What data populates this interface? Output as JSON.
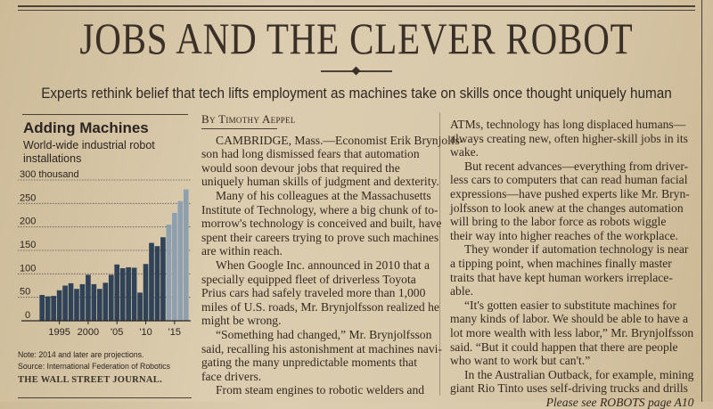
{
  "headline": "JOBS AND THE CLEVER ROBOT",
  "deck": "Experts rethink belief that tech lifts employment as machines take on skills once thought uniquely human",
  "graphic": {
    "title": "Adding Machines",
    "subtitle_lines": [
      "World-wide industrial robot",
      "installations"
    ],
    "note": "Note: 2014 and later are projections.",
    "source": "Source: International Federation of Robotics",
    "credit": "THE WALL STREET JOURNAL."
  },
  "chart_data": {
    "type": "bar",
    "title": "Adding Machines",
    "subtitle": "World-wide industrial robot installations",
    "ylabel": "300 thousand",
    "ylim": [
      0,
      300
    ],
    "yticks": [
      0,
      50,
      100,
      150,
      200,
      250,
      300
    ],
    "ytick_labels": [
      "0",
      "50",
      "100",
      "150",
      "200",
      "250",
      "300 thousand"
    ],
    "xtick_labels": [
      {
        "year": 1995,
        "label": "1995"
      },
      {
        "year": 2000,
        "label": "2000"
      },
      {
        "year": 2005,
        "label": "'05"
      },
      {
        "year": 2010,
        "label": "'10"
      },
      {
        "year": 2015,
        "label": "'15"
      }
    ],
    "categories": [
      1992,
      1993,
      1994,
      1995,
      1996,
      1997,
      1998,
      1999,
      2000,
      2001,
      2002,
      2003,
      2004,
      2005,
      2006,
      2007,
      2008,
      2009,
      2010,
      2011,
      2012,
      2013,
      2014,
      2015,
      2016,
      2017
    ],
    "values": [
      55,
      52,
      53,
      65,
      75,
      80,
      68,
      78,
      98,
      78,
      68,
      81,
      98,
      120,
      112,
      114,
      113,
      60,
      121,
      166,
      159,
      178,
      205,
      230,
      255,
      280
    ],
    "projection_from": 2014,
    "grid": "dotted horizontal",
    "colors": {
      "actual": "#2f4257",
      "projection": "#8ea0b0"
    }
  },
  "byline": "By Timothy Aeppel",
  "column1": [
    {
      "cls": "ind",
      "t": "CAMBRIDGE, Mass.—Economist Erik Brynjolfs-"
    },
    {
      "cls": "",
      "t": "son had long dismissed fears that automation"
    },
    {
      "cls": "",
      "t": "would soon devour jobs that required the"
    },
    {
      "cls": "",
      "t": "uniquely human skills of judgment and dexterity."
    },
    {
      "cls": "ind",
      "t": "Many of his colleagues at the Massachusetts"
    },
    {
      "cls": "",
      "t": "Institute of Technology, where a big chunk of to-"
    },
    {
      "cls": "",
      "t": "morrow's technology is conceived and built, have"
    },
    {
      "cls": "",
      "t": "spent their careers trying to prove such machines"
    },
    {
      "cls": "",
      "t": "are within reach."
    },
    {
      "cls": "ind",
      "t": "When Google Inc. announced in 2010 that a"
    },
    {
      "cls": "",
      "t": "specially equipped fleet of driverless Toyota"
    },
    {
      "cls": "",
      "t": "Prius cars had safely traveled more than 1,000"
    },
    {
      "cls": "",
      "t": "miles of U.S. roads, Mr. Brynjolfsson realized he"
    },
    {
      "cls": "",
      "t": "might be wrong."
    },
    {
      "cls": "ind",
      "t": "“Something had changed,” Mr. Brynjolfsson"
    },
    {
      "cls": "",
      "t": "said, recalling his astonishment at machines navi-"
    },
    {
      "cls": "",
      "t": "gating the many unpredictable moments that"
    },
    {
      "cls": "",
      "t": "face drivers."
    },
    {
      "cls": "ind",
      "t": "From steam engines to robotic welders and"
    }
  ],
  "column2": [
    {
      "cls": "",
      "t": "ATMs, technology has long displaced humans—"
    },
    {
      "cls": "",
      "t": "always creating new, often higher-skill jobs in its"
    },
    {
      "cls": "",
      "t": "wake."
    },
    {
      "cls": "ind",
      "t": "But recent advances—everything from driver-"
    },
    {
      "cls": "",
      "t": "less cars to computers that can read human facial"
    },
    {
      "cls": "",
      "t": "expressions—have pushed experts like Mr. Bryn-"
    },
    {
      "cls": "",
      "t": "jolfsson to look anew at the changes automation"
    },
    {
      "cls": "",
      "t": "will bring to the labor force as robots wiggle"
    },
    {
      "cls": "",
      "t": "their way into higher reaches of the workplace."
    },
    {
      "cls": "ind",
      "t": "They wonder if automation technology is near"
    },
    {
      "cls": "",
      "t": "a tipping point, when machines finally master"
    },
    {
      "cls": "",
      "t": "traits that have kept human workers irreplace-"
    },
    {
      "cls": "",
      "t": "able."
    },
    {
      "cls": "ind",
      "t": "“It's gotten easier to substitute machines for"
    },
    {
      "cls": "",
      "t": "many kinds of labor. We should be able to have a"
    },
    {
      "cls": "",
      "t": "lot more wealth with less labor,” Mr. Brynjolfsson"
    },
    {
      "cls": "",
      "t": "said. “But it could happen that there are people"
    },
    {
      "cls": "",
      "t": "who want to work but can't.”"
    },
    {
      "cls": "ind",
      "t": "In the Australian Outback, for example, mining"
    },
    {
      "cls": "",
      "t": "giant Rio Tinto uses self-driving trucks and drills"
    }
  ],
  "jump": "Please see ROBOTS page A10"
}
